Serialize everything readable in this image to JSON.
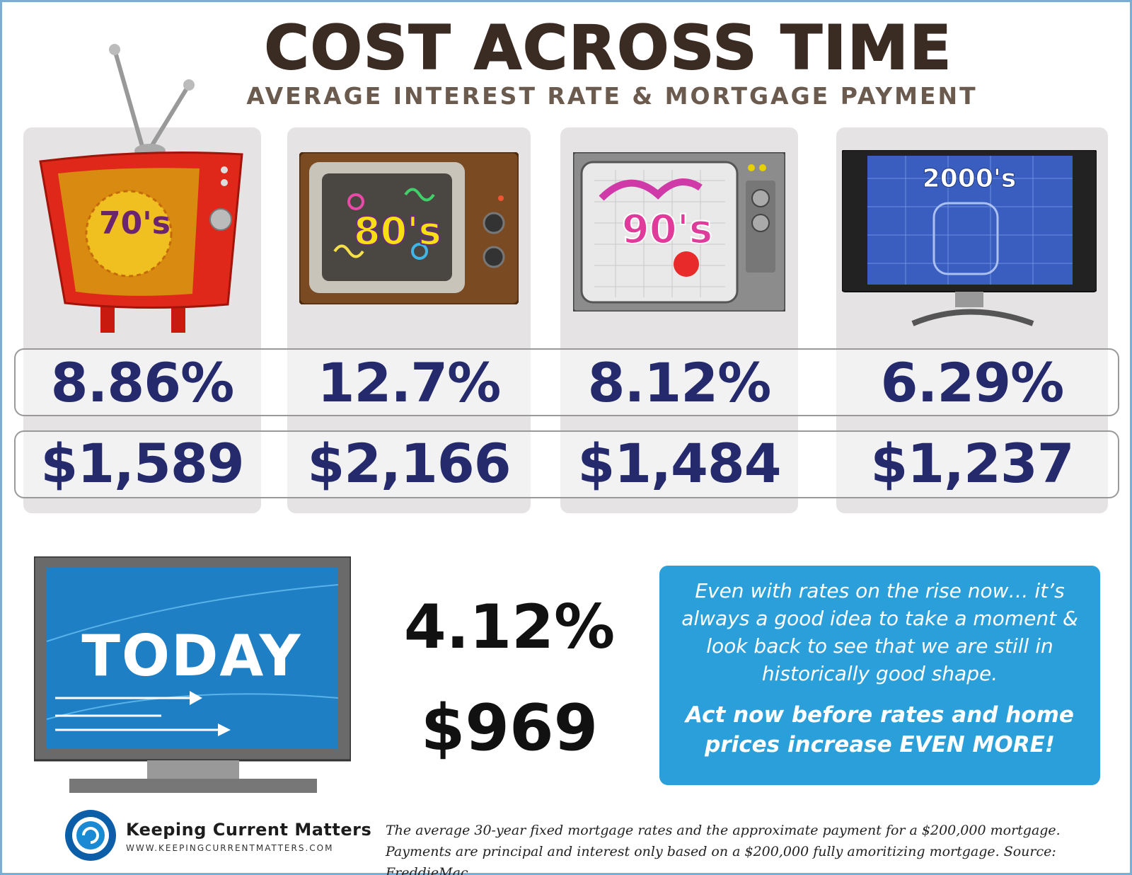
{
  "header": {
    "title": "COST ACROSS TIME",
    "subtitle": "AVERAGE INTEREST RATE & MORTGAGE PAYMENT"
  },
  "decades": [
    {
      "label": "70's",
      "rate": "8.86%",
      "payment": "$1,589",
      "icon": "retro-red-tv-icon"
    },
    {
      "label": "80's",
      "rate": "12.7%",
      "payment": "$2,166",
      "icon": "wood-console-tv-icon"
    },
    {
      "label": "90's",
      "rate": "8.12%",
      "payment": "$1,484",
      "icon": "grey-crt-tv-icon"
    },
    {
      "label": "2000's",
      "rate": "6.29%",
      "payment": "$1,237",
      "icon": "flat-screen-tv-icon"
    }
  ],
  "today": {
    "label": "TODAY",
    "rate": "4.12%",
    "payment": "$969",
    "icon": "modern-monitor-icon"
  },
  "message": {
    "line1": "Even with rates on the rise now… it’s always a good idea to take a moment & look back to see that we are still in historically good shape.",
    "line2": "Act now before rates and home prices increase EVEN MORE!"
  },
  "brand": {
    "name": "Keeping Current Matters",
    "url": "WWW.KEEPINGCURRENTMATTERS.COM",
    "icon": "swirl-logo-icon"
  },
  "footnote": {
    "line1": "The average 30-year fixed mortgage rates and the approximate payment for a $200,000 mortgage.",
    "line2": "Payments are principal and interest only based on a $200,000 fully amoritizing mortgage. Source: FreddieMac"
  },
  "colors": {
    "value_navy": "#242a6b",
    "column_bg": "#e5e3e3",
    "message_bg": "#2a9fd9",
    "title_brown": "#3a2b23"
  }
}
